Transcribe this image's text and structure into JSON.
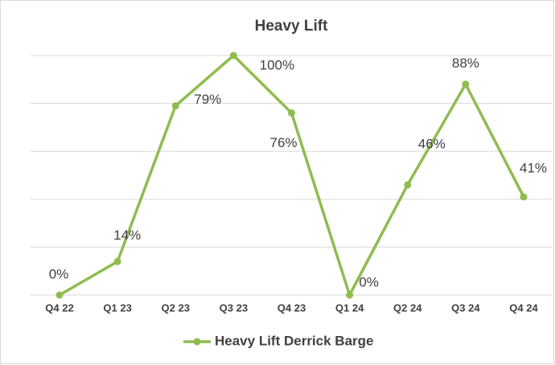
{
  "chart_data": {
    "type": "line",
    "title": "Heavy Lift",
    "categories": [
      "Q4 22",
      "Q1 23",
      "Q2 23",
      "Q3 23",
      "Q4 23",
      "Q1 24",
      "Q2 24",
      "Q3 24",
      "Q4 24"
    ],
    "series": [
      {
        "name": "Heavy Lift Derrick Barge",
        "color": "#8fbc4f",
        "values": [
          0,
          14,
          79,
          100,
          76,
          0,
          46,
          88,
          41
        ],
        "value_labels": [
          "0%",
          "14%",
          "79%",
          "100%",
          "76%",
          "0%",
          "46%",
          "88%",
          "41%"
        ]
      }
    ],
    "ylim": [
      0,
      100
    ],
    "yticks": [
      0,
      20,
      40,
      60,
      80,
      100
    ],
    "grid": true,
    "legend": "bottom"
  }
}
